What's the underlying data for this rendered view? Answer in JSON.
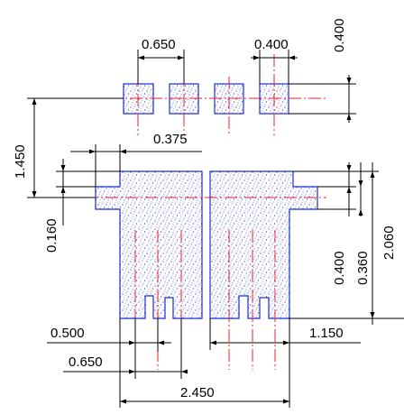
{
  "dimensions": {
    "pile_spacing": "0.650",
    "pile_width": "0.400",
    "pile_height": "0.400",
    "top_offset": "1.450",
    "flange_offset": "0.375",
    "flange_thickness": "0.160",
    "slot_width": "0.500",
    "slot_spacing": "0.650",
    "total_width": "2.450",
    "half_width": "1.150",
    "ledge_height": "0.400",
    "step_height": "0.360",
    "total_height": "2.060"
  },
  "colors": {
    "outline": "#1a2bd6",
    "centerline": "#e8202a",
    "dimension": "#000000"
  }
}
